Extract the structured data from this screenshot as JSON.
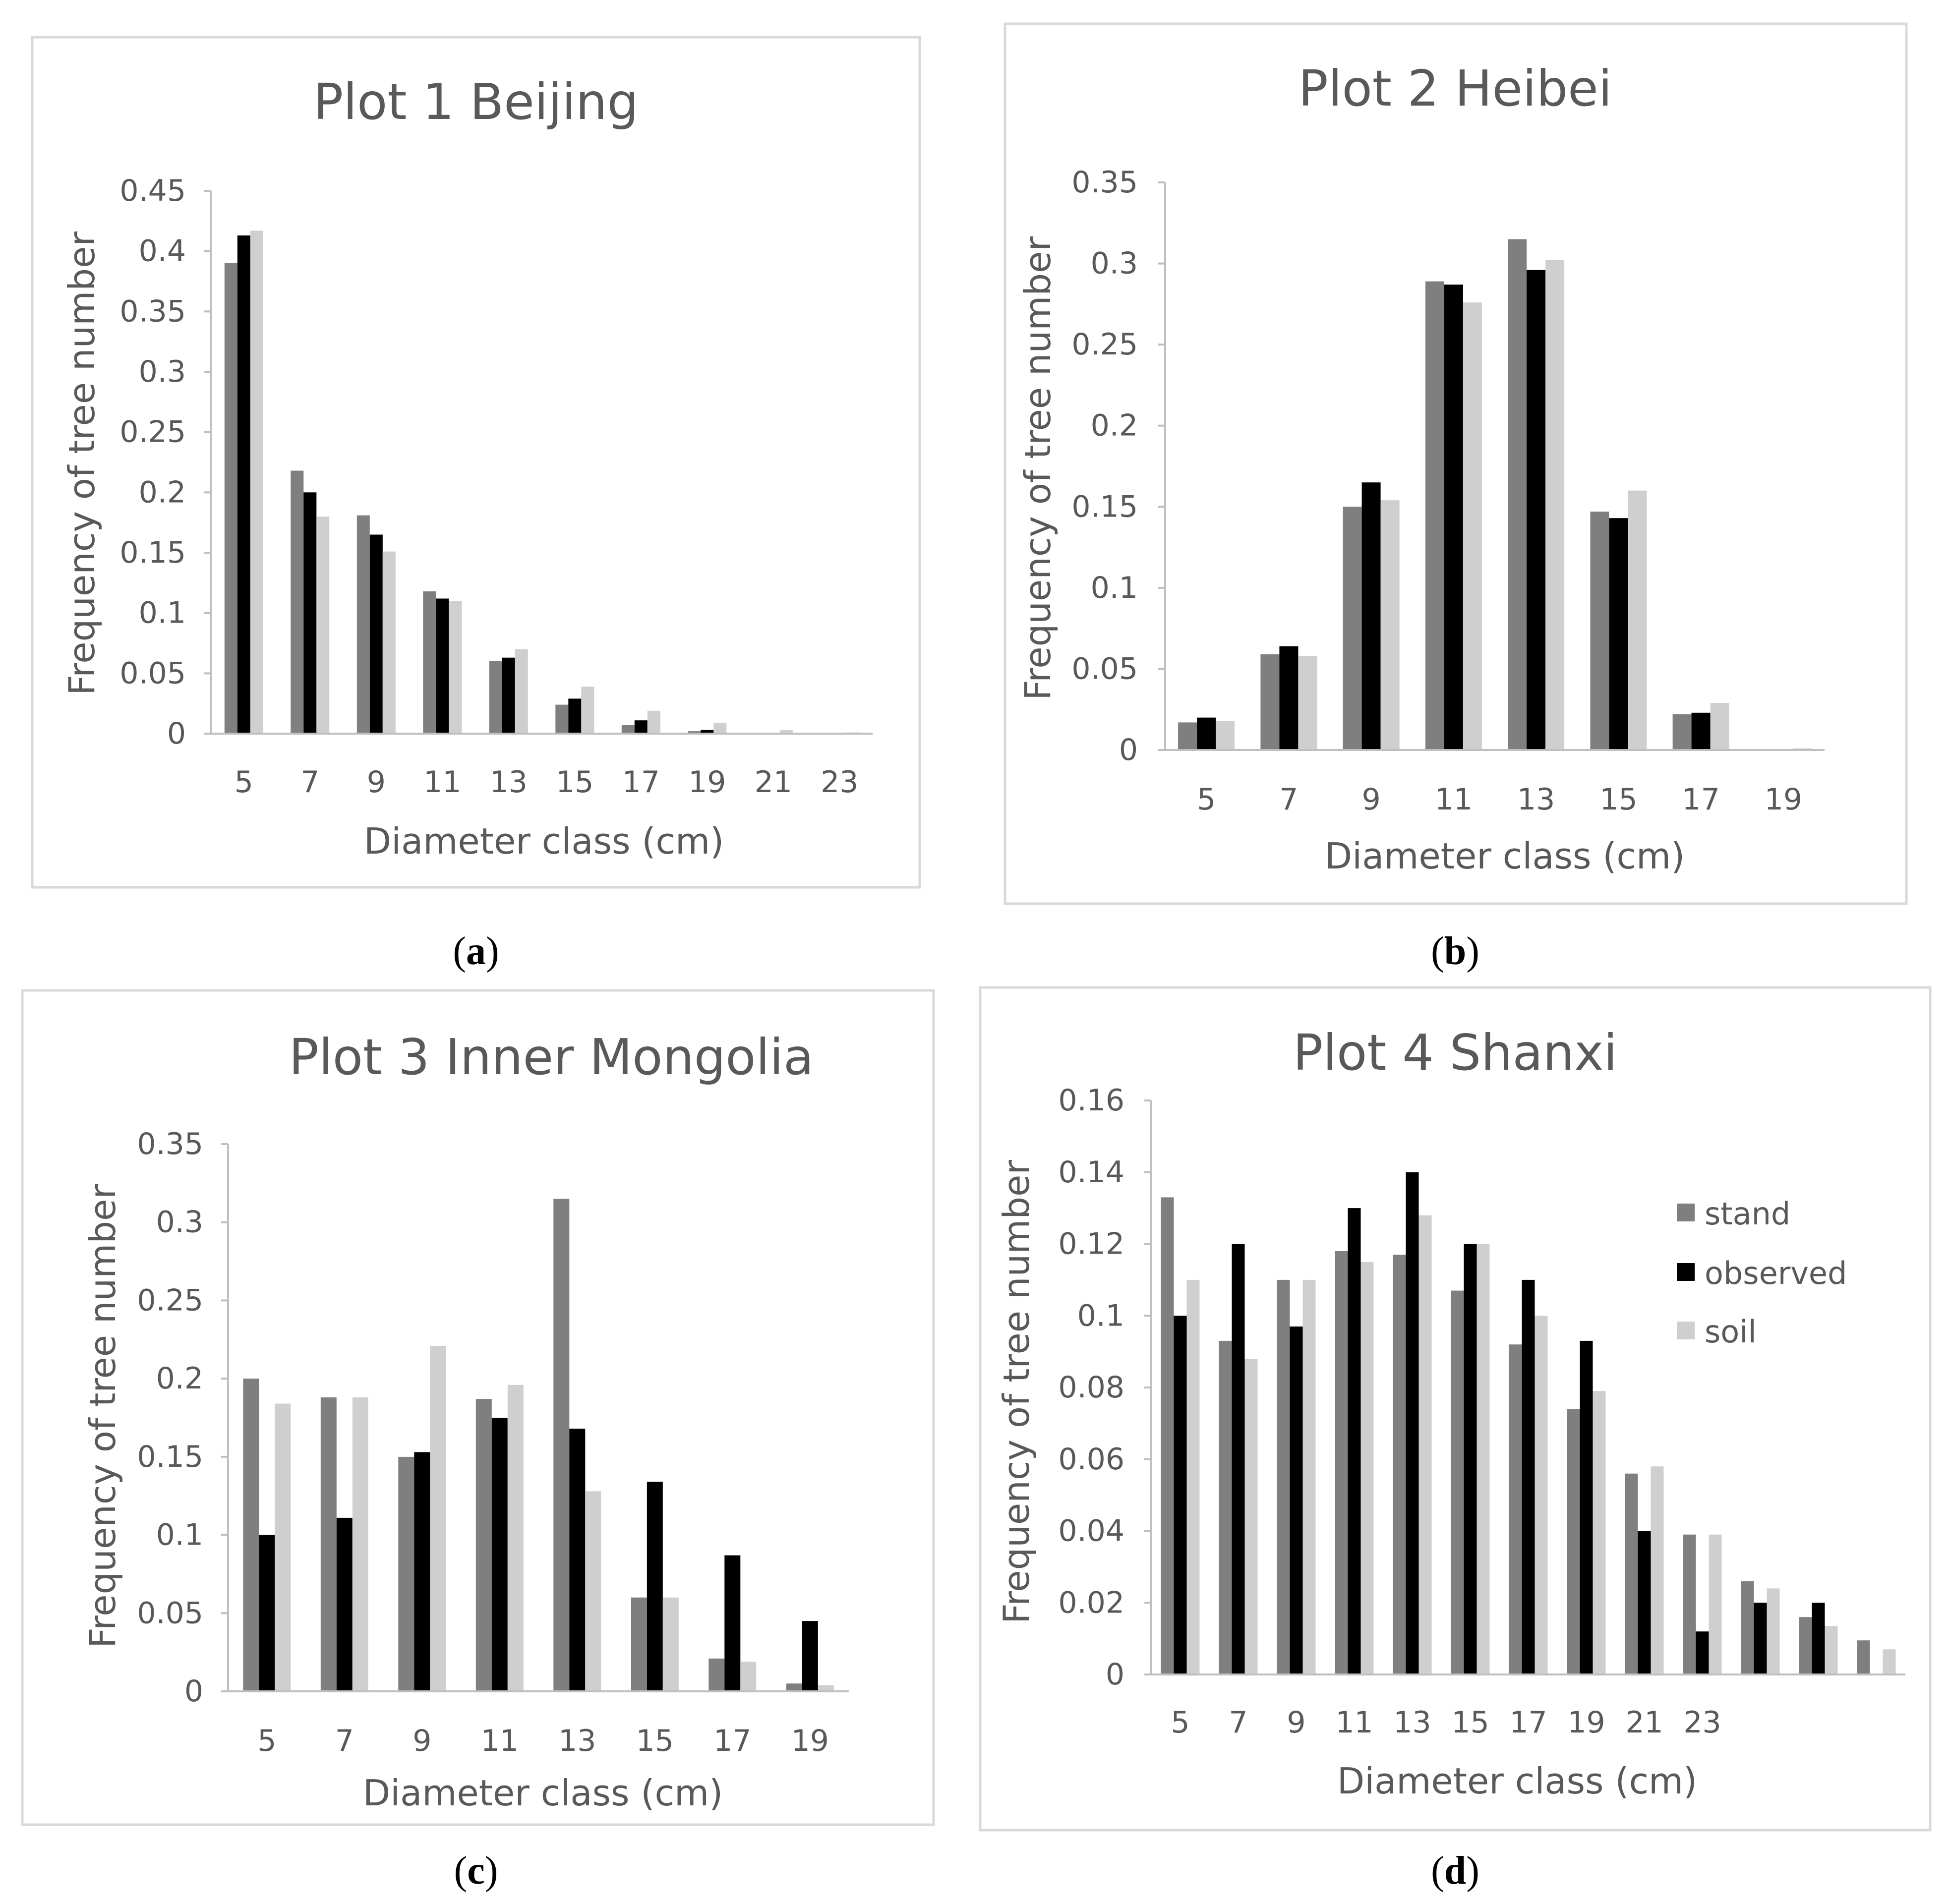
{
  "colors": {
    "stand": "#7f7f7f",
    "observed": "#000000",
    "soil": "#cfcfcf",
    "text": "#595959",
    "axis": "#bfbfbf",
    "border": "#d9d9d9"
  },
  "panels": [
    {
      "label_open": "(",
      "label_letter": "a",
      "label_close": ")"
    },
    {
      "label_open": "(",
      "label_letter": "b",
      "label_close": ")"
    },
    {
      "label_open": "(",
      "label_letter": "c",
      "label_close": ")"
    },
    {
      "label_open": "(",
      "label_letter": "d",
      "label_close": ")"
    }
  ],
  "chart_data": [
    {
      "type": "bar",
      "title": "Plot 1 Beijing",
      "xlabel": "Diameter class (cm)",
      "ylabel": "Frequency of tree number",
      "ylim": [
        0,
        0.45
      ],
      "yticks": [
        "0",
        "0.05",
        "0.1",
        "0.15",
        "0.2",
        "0.25",
        "0.3",
        "0.35",
        "0.4",
        "0.45"
      ],
      "categories": [
        "5",
        "7",
        "9",
        "11",
        "13",
        "15",
        "17",
        "19",
        "21",
        "23"
      ],
      "series": [
        {
          "name": "stand",
          "values": [
            0.39,
            0.218,
            0.181,
            0.118,
            0.06,
            0.024,
            0.007,
            0.002,
            0,
            0
          ]
        },
        {
          "name": "observed",
          "values": [
            0.413,
            0.2,
            0.165,
            0.112,
            0.063,
            0.029,
            0.011,
            0.003,
            0,
            0
          ]
        },
        {
          "name": "soil",
          "values": [
            0.417,
            0.18,
            0.151,
            0.11,
            0.07,
            0.039,
            0.019,
            0.009,
            0.003,
            0.001
          ]
        }
      ]
    },
    {
      "type": "bar",
      "title": "Plot 2 Heibei",
      "xlabel": "Diameter class (cm)",
      "ylabel": "Frequency of tree number",
      "ylim": [
        0,
        0.35
      ],
      "yticks": [
        "0",
        "0.05",
        "0.1",
        "0.15",
        "0.2",
        "0.25",
        "0.3",
        "0.35"
      ],
      "categories": [
        "5",
        "7",
        "9",
        "11",
        "13",
        "15",
        "17",
        "19"
      ],
      "series": [
        {
          "name": "stand",
          "values": [
            0.017,
            0.059,
            0.15,
            0.289,
            0.315,
            0.147,
            0.022,
            0
          ]
        },
        {
          "name": "observed",
          "values": [
            0.02,
            0.064,
            0.165,
            0.287,
            0.296,
            0.143,
            0.023,
            0
          ]
        },
        {
          "name": "soil",
          "values": [
            0.018,
            0.058,
            0.154,
            0.276,
            0.302,
            0.16,
            0.029,
            0.001
          ]
        }
      ]
    },
    {
      "type": "bar",
      "title": "Plot 3 Inner Mongolia",
      "xlabel": "Diameter class (cm)",
      "ylabel": "Frequency of tree number",
      "ylim": [
        0,
        0.35
      ],
      "yticks": [
        "0",
        "0.05",
        "0.1",
        "0.15",
        "0.2",
        "0.25",
        "0.3",
        "0.35"
      ],
      "categories": [
        "5",
        "7",
        "9",
        "11",
        "13",
        "15",
        "17",
        "19"
      ],
      "series": [
        {
          "name": "stand",
          "values": [
            0.2,
            0.188,
            0.15,
            0.187,
            0.315,
            0.06,
            0.021,
            0.005
          ]
        },
        {
          "name": "observed",
          "values": [
            0.1,
            0.111,
            0.153,
            0.175,
            0.168,
            0.134,
            0.087,
            0.045
          ]
        },
        {
          "name": "soil",
          "values": [
            0.184,
            0.188,
            0.221,
            0.196,
            0.128,
            0.06,
            0.019,
            0.004
          ]
        }
      ]
    },
    {
      "type": "bar",
      "title": "Plot 4 Shanxi",
      "xlabel": "Diameter class (cm)",
      "ylabel": "Frequency of tree number",
      "ylim": [
        0,
        0.16
      ],
      "yticks": [
        "0",
        "0.02",
        "0.04",
        "0.06",
        "0.08",
        "0.1",
        "0.12",
        "0.14",
        "0.16"
      ],
      "categories": [
        "5",
        "7",
        "9",
        "11",
        "13",
        "15",
        "17",
        "19",
        "21",
        "23",
        "",
        "",
        ""
      ],
      "legend_position": "right",
      "legend": [
        "stand",
        "observed",
        "soil"
      ],
      "series": [
        {
          "name": "stand",
          "values": [
            0.133,
            0.093,
            0.11,
            0.118,
            0.117,
            0.107,
            0.092,
            0.074,
            0.056,
            0.039,
            0.026,
            0.016,
            0.0095
          ]
        },
        {
          "name": "observed",
          "values": [
            0.1,
            0.12,
            0.097,
            0.13,
            0.14,
            0.12,
            0.11,
            0.093,
            0.04,
            0.012,
            0.02,
            0.02,
            0
          ]
        },
        {
          "name": "soil",
          "values": [
            0.11,
            0.088,
            0.11,
            0.115,
            0.128,
            0.12,
            0.1,
            0.079,
            0.058,
            0.039,
            0.024,
            0.0135,
            0.007
          ]
        }
      ]
    }
  ]
}
